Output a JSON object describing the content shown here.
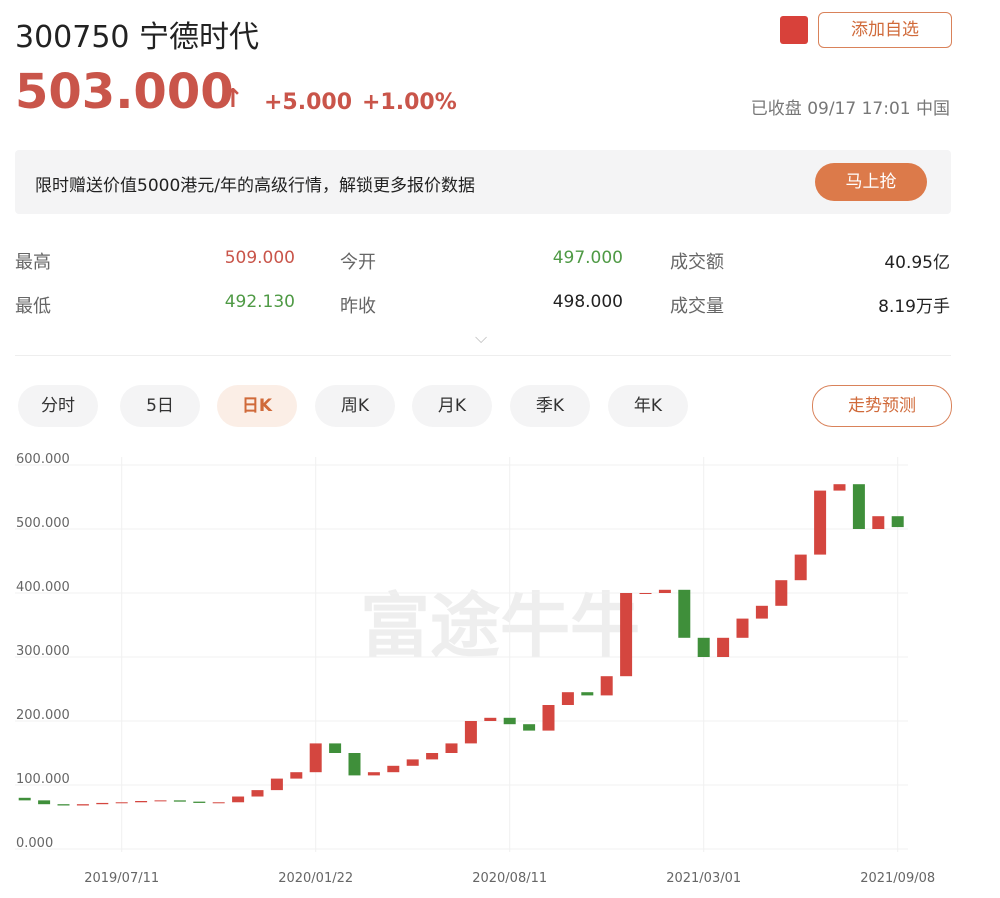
{
  "header": {
    "title": "300750 宁德时代",
    "watch_button": "添加自选",
    "price": "503.000",
    "change": "+5.000",
    "change_pct": "+1.00%",
    "status": "已收盘 09/17 17:01 中国"
  },
  "banner": {
    "text": "限时赠送价值5000港元/年的高级行情，解锁更多报价数据",
    "button": "马上抢"
  },
  "stats": {
    "rows": [
      [
        "最高",
        "509.000",
        "今开",
        "497.000",
        "成交额",
        "40.95亿"
      ],
      [
        "最低",
        "492.130",
        "昨收",
        "498.000",
        "成交量",
        "8.19万手"
      ]
    ]
  },
  "tabs": [
    "分时",
    "5日",
    "日K",
    "周K",
    "月K",
    "季K",
    "年K"
  ],
  "forecast_button": "走势预测",
  "chart_data": {
    "type": "candlestick",
    "watermark": "富途牛牛",
    "up_color": "#d4463f",
    "down_color": "#3f8f3a",
    "categories": [
      null,
      null,
      null,
      null,
      null,
      "2019/07/11",
      null,
      null,
      null,
      null,
      null,
      null,
      null,
      null,
      null,
      "2020/01/22",
      null,
      null,
      null,
      null,
      null,
      null,
      null,
      null,
      null,
      "2020/08/11",
      null,
      null,
      null,
      null,
      null,
      null,
      null,
      null,
      null,
      "2021/03/01",
      null,
      null,
      null,
      null,
      null,
      null,
      null,
      null,
      null,
      "2021/09/08"
    ],
    "open": [
      80,
      76,
      70,
      68,
      70,
      72,
      73,
      75,
      76,
      74,
      72,
      73,
      82,
      92,
      110,
      120,
      165,
      150,
      115,
      120,
      130,
      140,
      150,
      165,
      200,
      205,
      195,
      185,
      225,
      245,
      240,
      270,
      400,
      400,
      405,
      330,
      300,
      330,
      360,
      380,
      420,
      460,
      560,
      570,
      500,
      520
    ],
    "close": [
      76,
      70,
      68,
      70,
      72,
      73,
      75,
      76,
      74,
      72,
      73,
      82,
      92,
      110,
      120,
      165,
      150,
      115,
      120,
      130,
      140,
      150,
      165,
      200,
      205,
      195,
      185,
      225,
      245,
      240,
      270,
      400,
      400,
      405,
      330,
      300,
      330,
      360,
      380,
      420,
      460,
      560,
      570,
      500,
      520,
      503
    ],
    "ylim": [
      0,
      600
    ],
    "yticks": [
      {
        "value": 0,
        "label": "0.000"
      },
      {
        "value": 100,
        "label": "100.000"
      },
      {
        "value": 200,
        "label": "200.000"
      },
      {
        "value": 300,
        "label": "300.000"
      },
      {
        "value": 400,
        "label": "400.000"
      },
      {
        "value": 500,
        "label": "500.000"
      },
      {
        "value": 600,
        "label": "600.000"
      }
    ],
    "grid": true
  }
}
